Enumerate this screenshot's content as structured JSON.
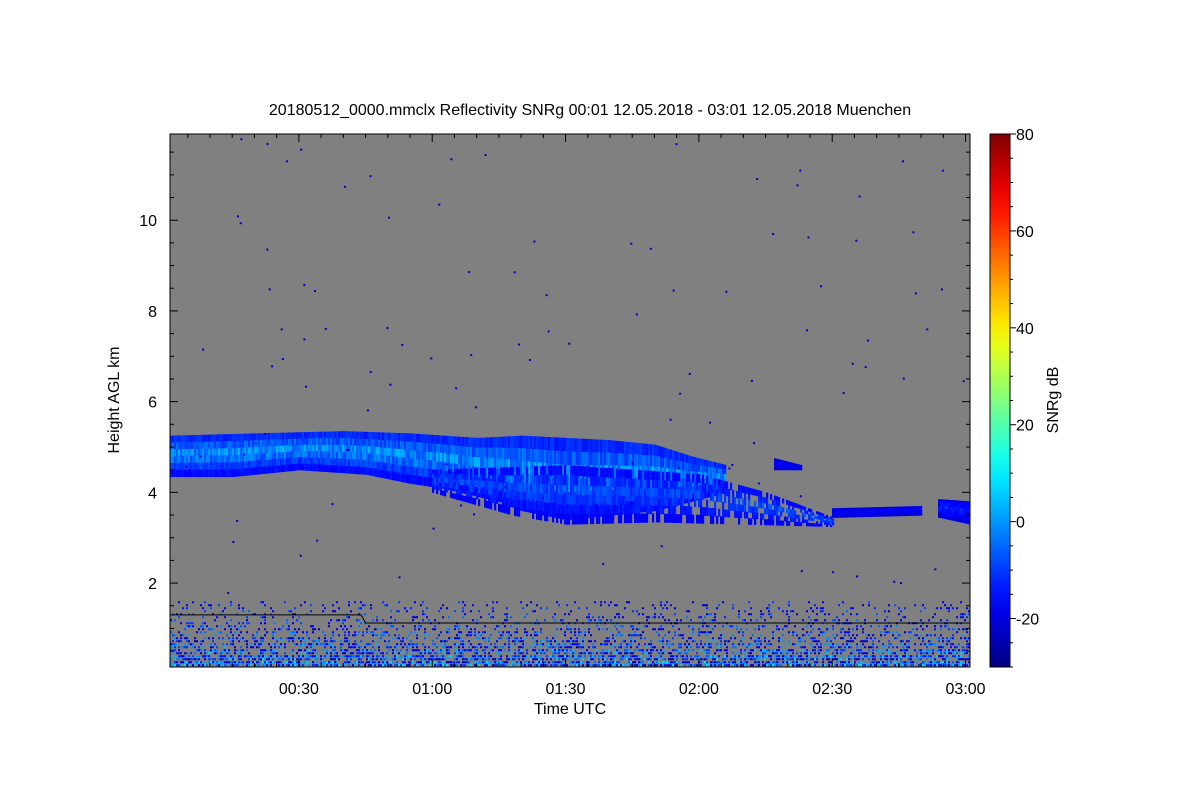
{
  "chart_data": {
    "type": "heatmap",
    "title": "20180512_0000.mmclx Reflectivity SNRg   00:01 12.05.2018 - 03:01 12.05.2018 Muenchen",
    "xlabel": "Time UTC",
    "ylabel": "Height AGL km",
    "x_unit": "minutes after 00:00 UTC",
    "xlim": [
      1,
      181
    ],
    "ylim": [
      0.15,
      11.9
    ],
    "x_ticks": [
      30,
      60,
      90,
      120,
      150,
      180
    ],
    "x_tick_labels": [
      "00:30",
      "01:00",
      "01:30",
      "02:00",
      "02:30",
      "03:00"
    ],
    "y_ticks": [
      2,
      4,
      6,
      8,
      10
    ],
    "y_tick_labels": [
      "2",
      "4",
      "6",
      "8",
      "10"
    ],
    "background_color": "#808080",
    "colorbar": {
      "label": "SNRg dB",
      "range": [
        -30,
        80
      ],
      "ticks": [
        -20,
        0,
        20,
        40,
        60,
        80
      ],
      "tick_labels": [
        "-20",
        "0",
        "20",
        "40",
        "60",
        "80"
      ],
      "colormap": "jet"
    },
    "features": [
      {
        "name": "cloud layer",
        "x_range": [
          1,
          126
        ],
        "top_km": [
          [
            1,
            5.25
          ],
          [
            20,
            5.3
          ],
          [
            40,
            5.35
          ],
          [
            55,
            5.3
          ],
          [
            70,
            5.2
          ],
          [
            80,
            5.25
          ],
          [
            90,
            5.2
          ],
          [
            100,
            5.15
          ],
          [
            110,
            5.05
          ],
          [
            118,
            4.8
          ],
          [
            126,
            4.6
          ]
        ],
        "base_km": [
          [
            1,
            4.35
          ],
          [
            15,
            4.35
          ],
          [
            30,
            4.5
          ],
          [
            45,
            4.4
          ],
          [
            55,
            4.2
          ],
          [
            62,
            4.1
          ],
          [
            75,
            3.8
          ],
          [
            80,
            3.6
          ],
          [
            90,
            3.4
          ],
          [
            100,
            3.5
          ],
          [
            110,
            3.6
          ],
          [
            118,
            3.8
          ],
          [
            126,
            4.0
          ]
        ],
        "snr_db": [
          -20,
          5
        ]
      },
      {
        "name": "fall streaks",
        "x_range": [
          60,
          150
        ],
        "top_km": [
          [
            60,
            4.5
          ],
          [
            90,
            4.6
          ],
          [
            120,
            4.4
          ],
          [
            135,
            4.0
          ],
          [
            150,
            3.45
          ]
        ],
        "base_km": [
          [
            60,
            4.0
          ],
          [
            78,
            3.5
          ],
          [
            90,
            3.3
          ],
          [
            110,
            3.35
          ],
          [
            130,
            3.3
          ],
          [
            150,
            3.25
          ]
        ],
        "snr_db": [
          -20,
          -5
        ]
      },
      {
        "name": "small echo",
        "x_range": [
          137,
          143
        ],
        "top_km": [
          [
            137,
            4.75
          ],
          [
            143,
            4.6
          ]
        ],
        "base_km": [
          [
            137,
            4.5
          ],
          [
            143,
            4.5
          ]
        ],
        "snr_db": [
          -22,
          -15
        ]
      },
      {
        "name": "thin layer",
        "x_range": [
          150,
          170
        ],
        "top_km": [
          [
            150,
            3.65
          ],
          [
            170,
            3.7
          ]
        ],
        "base_km": [
          [
            150,
            3.45
          ],
          [
            170,
            3.5
          ]
        ],
        "snr_db": [
          -22,
          -15
        ]
      },
      {
        "name": "edge layer",
        "x_range": [
          174,
          181
        ],
        "top_km": [
          [
            174,
            3.85
          ],
          [
            181,
            3.8
          ]
        ],
        "base_km": [
          [
            174,
            3.45
          ],
          [
            181,
            3.3
          ]
        ],
        "snr_db": [
          -22,
          -10
        ]
      },
      {
        "name": "boundary layer clutter",
        "x_range": [
          1,
          181
        ],
        "top_km": [
          [
            1,
            1.6
          ],
          [
            181,
            1.6
          ]
        ],
        "base_km": [
          [
            1,
            0.15
          ],
          [
            181,
            0.15
          ]
        ],
        "snr_db": [
          -25,
          10
        ]
      }
    ],
    "boundary_line": [
      [
        1,
        1.3
      ],
      [
        44,
        1.3
      ],
      [
        45,
        1.12
      ],
      [
        181,
        1.12
      ]
    ],
    "grid": false
  }
}
